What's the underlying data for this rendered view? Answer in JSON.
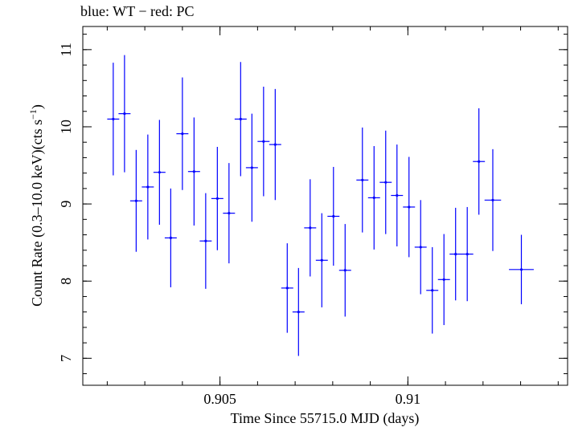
{
  "chart_data": {
    "type": "scatter",
    "title": "blue: WT − red: PC",
    "xlabel": "Time Since 55715.0 MJD (days)",
    "ylabel_main": "Count Rate (0.3–10.0 keV)(cts s",
    "ylabel_sup": "−1",
    "ylabel_tail": ")",
    "xlim": [
      0.90135,
      0.91425
    ],
    "ylim": [
      6.65,
      11.3
    ],
    "x_ticks": [
      {
        "value": 0.905,
        "label": "0.905"
      },
      {
        "value": 0.91,
        "label": "0.91"
      }
    ],
    "y_ticks": [
      {
        "value": 7,
        "label": "7"
      },
      {
        "value": 8,
        "label": "8"
      },
      {
        "value": 9,
        "label": "9"
      },
      {
        "value": 10,
        "label": "10"
      },
      {
        "value": 11,
        "label": "11"
      }
    ],
    "x_minor_step": 0.001,
    "y_minor_step": 0.2,
    "series": [
      {
        "color": "#0000ff",
        "points": [
          {
            "x": 0.90216,
            "y": 10.1,
            "yerr": 0.73,
            "xerr": 0.00016
          },
          {
            "x": 0.90246,
            "y": 10.17,
            "yerr": 0.76,
            "xerr": 0.00016
          },
          {
            "x": 0.90277,
            "y": 9.04,
            "yerr": 0.66,
            "xerr": 0.00016
          },
          {
            "x": 0.90308,
            "y": 9.22,
            "yerr": 0.68,
            "xerr": 0.00016
          },
          {
            "x": 0.90339,
            "y": 9.41,
            "yerr": 0.68,
            "xerr": 0.00016
          },
          {
            "x": 0.90369,
            "y": 8.56,
            "yerr": 0.64,
            "xerr": 0.00016
          },
          {
            "x": 0.904,
            "y": 9.91,
            "yerr": 0.73,
            "xerr": 0.00016
          },
          {
            "x": 0.90431,
            "y": 9.42,
            "yerr": 0.7,
            "xerr": 0.00016
          },
          {
            "x": 0.90462,
            "y": 8.52,
            "yerr": 0.62,
            "xerr": 0.00016
          },
          {
            "x": 0.90493,
            "y": 9.07,
            "yerr": 0.67,
            "xerr": 0.00016
          },
          {
            "x": 0.90524,
            "y": 8.88,
            "yerr": 0.65,
            "xerr": 0.00016
          },
          {
            "x": 0.90555,
            "y": 10.1,
            "yerr": 0.74,
            "xerr": 0.00016
          },
          {
            "x": 0.90585,
            "y": 9.47,
            "yerr": 0.7,
            "xerr": 0.00016
          },
          {
            "x": 0.90616,
            "y": 9.81,
            "yerr": 0.71,
            "xerr": 0.00016
          },
          {
            "x": 0.90647,
            "y": 9.77,
            "yerr": 0.72,
            "xerr": 0.00016
          },
          {
            "x": 0.90679,
            "y": 7.91,
            "yerr": 0.58,
            "xerr": 0.00016
          },
          {
            "x": 0.90709,
            "y": 7.6,
            "yerr": 0.57,
            "xerr": 0.00016
          },
          {
            "x": 0.9074,
            "y": 8.69,
            "yerr": 0.63,
            "xerr": 0.00016
          },
          {
            "x": 0.90771,
            "y": 8.27,
            "yerr": 0.61,
            "xerr": 0.00016
          },
          {
            "x": 0.90802,
            "y": 8.84,
            "yerr": 0.64,
            "xerr": 0.00016
          },
          {
            "x": 0.90833,
            "y": 8.14,
            "yerr": 0.6,
            "xerr": 0.00016
          },
          {
            "x": 0.90879,
            "y": 9.31,
            "yerr": 0.68,
            "xerr": 0.00016
          },
          {
            "x": 0.9091,
            "y": 9.08,
            "yerr": 0.67,
            "xerr": 0.00016
          },
          {
            "x": 0.90941,
            "y": 9.28,
            "yerr": 0.67,
            "xerr": 0.00016
          },
          {
            "x": 0.90971,
            "y": 9.11,
            "yerr": 0.66,
            "xerr": 0.00016
          },
          {
            "x": 0.91003,
            "y": 8.96,
            "yerr": 0.65,
            "xerr": 0.00016
          },
          {
            "x": 0.91034,
            "y": 8.44,
            "yerr": 0.61,
            "xerr": 0.00016
          },
          {
            "x": 0.91065,
            "y": 7.88,
            "yerr": 0.56,
            "xerr": 0.00016
          },
          {
            "x": 0.91096,
            "y": 8.02,
            "yerr": 0.59,
            "xerr": 0.00016
          },
          {
            "x": 0.91127,
            "y": 8.35,
            "yerr": 0.6,
            "xerr": 0.00016
          },
          {
            "x": 0.91158,
            "y": 8.35,
            "yerr": 0.61,
            "xerr": 0.00016
          },
          {
            "x": 0.91189,
            "y": 9.55,
            "yerr": 0.69,
            "xerr": 0.00016
          },
          {
            "x": 0.91226,
            "y": 9.05,
            "yerr": 0.66,
            "xerr": 0.00022
          },
          {
            "x": 0.91302,
            "y": 8.15,
            "yerr": 0.45,
            "xerr": 0.00033
          }
        ]
      }
    ]
  }
}
